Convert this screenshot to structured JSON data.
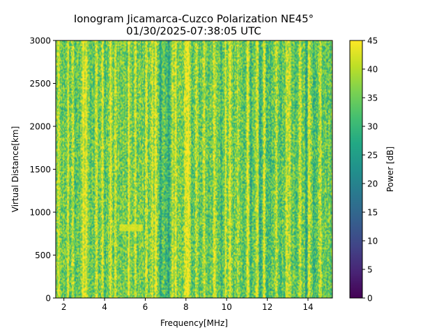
{
  "chart_data": {
    "type": "heatmap",
    "title_line1": "Ionogram Jicamarca-Cuzco Polarization NE45°",
    "title_line2": "01/30/2025-07:38:05 UTC",
    "xlabel": "Frequency[MHz]",
    "ylabel": "Virtual Distance[km]",
    "xlim": [
      1.6,
      15.2
    ],
    "ylim": [
      0,
      3000
    ],
    "x_ticks": [
      2,
      4,
      6,
      8,
      10,
      12,
      14
    ],
    "y_ticks": [
      0,
      500,
      1000,
      1500,
      2000,
      2500,
      3000
    ],
    "colorbar": {
      "label": "Power [dB]",
      "range": [
        0,
        45
      ],
      "ticks": [
        0,
        5,
        10,
        15,
        20,
        25,
        30,
        35,
        40,
        45
      ],
      "colormap": "viridis"
    },
    "bright_bands_mhz": [
      1.75,
      2.2,
      2.45,
      2.95,
      3.1,
      3.6,
      3.9,
      4.3,
      4.55,
      5.2,
      5.5,
      6.05,
      6.35,
      6.5,
      7.35,
      7.5,
      7.95,
      8.05,
      8.15,
      8.5,
      8.9,
      9.4,
      9.95,
      10.15,
      10.55,
      11.05,
      11.5,
      11.85,
      12.45,
      12.95,
      13.1,
      13.6,
      14.05,
      14.6
    ],
    "dark_bands_mhz": [
      6.75,
      7.0,
      7.15,
      8.45,
      9.75,
      11.2,
      11.65,
      12.15,
      13.9,
      14.3
    ],
    "trace": {
      "x_range_mhz": [
        4.7,
        5.9
      ],
      "distance_km": 820,
      "power_db": 44
    }
  }
}
